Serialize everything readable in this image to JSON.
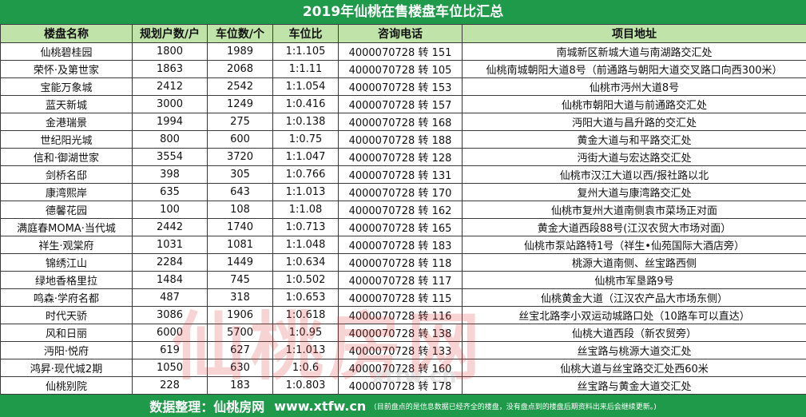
{
  "title": "2019年仙桃在售楼盘车位比汇总",
  "headers": [
    "楼盘名称",
    "规划户数/户",
    "车位数/个",
    "车位比",
    "咨询电话",
    "项目地址"
  ],
  "rows": [
    [
      "仙桃碧桂园",
      "1800",
      "1989",
      "1:1.105",
      "4000070728 转 151",
      "南城新区新城大道与南湖路交汇处"
    ],
    [
      "荣怀·及第世家",
      "1863",
      "2068",
      "1:1.11",
      "4000070728 转 105",
      "仙桃南城朝阳大道8号（前通路与朝阳大道交叉路口向西300米）"
    ],
    [
      "宝能万象城",
      "2412",
      "2542",
      "1:1.054",
      "4000070728 转 153",
      "仙桃市沔州大道8号"
    ],
    [
      "蓝天新城",
      "3000",
      "1249",
      "1:0.416",
      "4000070728 转 157",
      "仙桃市朝阳大道与前通路交汇处"
    ],
    [
      "金港瑞景",
      "1994",
      "275",
      "1:0.138",
      "4000070728 转 168",
      "沔阳大道与昌升路的交汇处"
    ],
    [
      "世纪阳光城",
      "800",
      "600",
      "1:0.75",
      "4000070728 转 188",
      "黄金大道与和平路交汇处"
    ],
    [
      "信和·御湖世家",
      "3554",
      "3720",
      "1:1.047",
      "4000070728 转 128",
      "沔街大道与宏达路交汇处"
    ],
    [
      "剑桥名邸",
      "398",
      "305",
      "1:0.766",
      "4000070728 转 131",
      "仙桃市汉江大道以西/报社路以北"
    ],
    [
      "康湾熙岸",
      "635",
      "643",
      "1:1.013",
      "4000070728 转 170",
      "复州大道与康湾路交汇处"
    ],
    [
      "德馨花园",
      "100",
      "108",
      "1:1.08",
      "4000070728 转 162",
      "仙桃市复州大道南侧袁市菜场正对面"
    ],
    [
      "满庭春MOMA·当代城",
      "2442",
      "1740",
      "1:0.713",
      "4000070728 转 165",
      "黄金大道西段88号(江汉农贸大市场对面）"
    ],
    [
      "祥生·观棠府",
      "1031",
      "1081",
      "1:1.048",
      "4000070728 转 183",
      "仙桃市泵站路特1号（祥生•仙苑国际大酒店旁）"
    ],
    [
      "锦绣江山",
      "2284",
      "1449",
      "1:0.634",
      "4000070728 转 118",
      "桃源大道南侧、丝宝路西侧"
    ],
    [
      "绿地香格里拉",
      "1484",
      "745",
      "1:0.502",
      "4000070728 转 117",
      "仙桃市军垦路9号"
    ],
    [
      "鸣森·学府名都",
      "487",
      "318",
      "1:0.653",
      "4000070728 转 115",
      "仙桃黄金大道（江汉农产品大市场东侧）"
    ],
    [
      "时代天骄",
      "3086",
      "1906",
      "1:0.618",
      "4000070728 转 116",
      "丝宝北路李小双运动城路口处（10路车可以直达）"
    ],
    [
      "风和日丽",
      "6000",
      "5700",
      "1:0.95",
      "4000070728 转 138",
      "仙桃大道西段（新农贸旁）"
    ],
    [
      "沔阳·悦府",
      "619",
      "627",
      "1:1.013",
      "4000070728 转 133",
      "丝宝路与桃源大道交汇处"
    ],
    [
      "鸿昇·现代城2期",
      "1050",
      "630",
      "1:0.6",
      "4000070728 转 160",
      "仙桃大道与丝宝路交汇处西60米"
    ],
    [
      "仙桃别院",
      "228",
      "183",
      "1:0.803",
      "4000070728 转 178",
      "丝宝路与黄金大道交汇处"
    ]
  ],
  "footer": {
    "main": "数据整理：仙桃房网",
    "site": "www.xtfw.cn",
    "note": "(目前盘点的是信息数据已经齐全的楼盘，没有盘点到的楼盘后期资料出来后会继续更新。)"
  },
  "watermark": {
    "text": "仙桃房网",
    "sub": "xtfw.cn"
  },
  "colors": {
    "title_bg": "#1f9a4a",
    "header_bg": "#bfe3a8",
    "footer_bg": "#1f9a4a",
    "watermark": "#e23c3c"
  }
}
